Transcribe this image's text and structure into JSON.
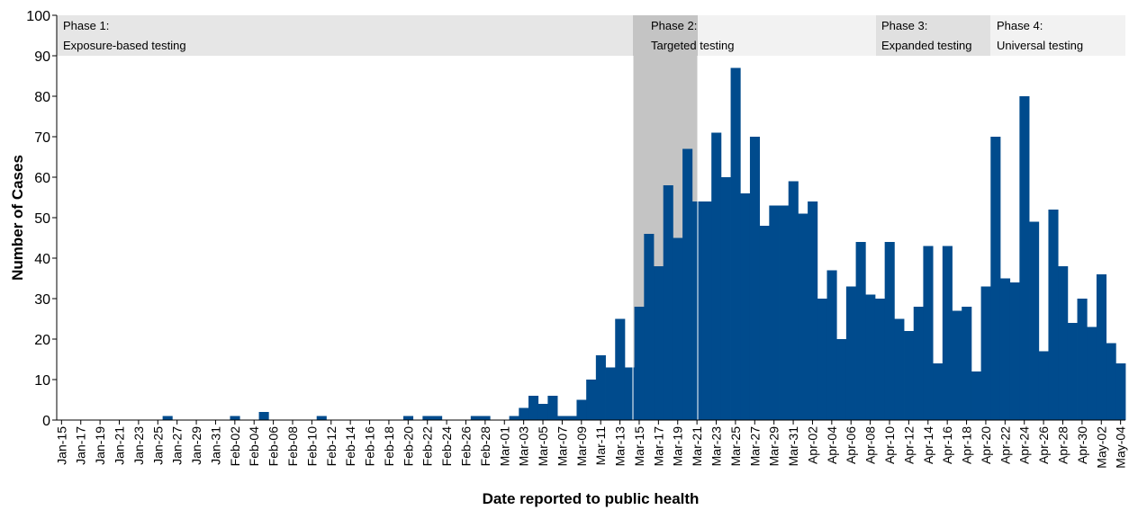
{
  "chart_data": {
    "type": "bar",
    "y_label": "Number of Cases",
    "x_label": "Date reported to public health",
    "color": "#004b8d",
    "phases": [
      {
        "name": "Phase 1:",
        "label": "Exposure-based testing"
      },
      {
        "name": "Phase 2:",
        "label": "Targeted testing"
      },
      {
        "name": "Phase 3:",
        "label": "Expanded testing"
      },
      {
        "name": "Phase 4:",
        "label": "Universal testing"
      }
    ],
    "categories": [
      "Jan-15",
      null,
      "Jan-17",
      null,
      "Jan-19",
      null,
      "Jan-21",
      null,
      "Jan-23",
      null,
      "Jan-25",
      null,
      "Jan-27",
      null,
      "Jan-29",
      null,
      "Jan-31",
      null,
      "Feb-02",
      null,
      "Feb-04",
      null,
      "Feb-06",
      null,
      "Feb-08",
      null,
      "Feb-10",
      null,
      "Feb-12",
      null,
      "Feb-14",
      null,
      "Feb-16",
      null,
      "Feb-18",
      null,
      "Feb-20",
      null,
      "Feb-22",
      null,
      "Feb-24",
      null,
      "Feb-26",
      null,
      "Feb-28",
      null,
      "Mar-01",
      null,
      "Mar-03",
      null,
      "Mar-05",
      null,
      "Mar-07",
      null,
      "Mar-09",
      null,
      "Mar-11",
      null,
      "Mar-13",
      null,
      "Mar-15",
      null,
      "Mar-17",
      null,
      "Mar-19",
      null,
      "Mar-21",
      null,
      "Mar-23",
      null,
      "Mar-25",
      null,
      "Mar-27",
      null,
      "Mar-29",
      null,
      "Mar-31",
      null,
      "Apr-02",
      null,
      "Apr-04",
      null,
      "Apr-06",
      null,
      "Apr-08",
      null,
      "Apr-10",
      null,
      "Apr-12",
      null,
      "Apr-14",
      null,
      "Apr-16",
      null,
      "Apr-18",
      null,
      "Apr-20",
      null,
      "Apr-22",
      null,
      "Apr-24",
      null,
      "Apr-26",
      null,
      "Apr-28",
      null,
      "Apr-30",
      null,
      "May-02",
      null,
      "May-04"
    ],
    "values": [
      0,
      0,
      0,
      0,
      0,
      0,
      0,
      0,
      0,
      0,
      0,
      1,
      0,
      0,
      0,
      0,
      0,
      0,
      1,
      0,
      0,
      2,
      0,
      0,
      0,
      0,
      0,
      1,
      0,
      0,
      0,
      0,
      0,
      0,
      0,
      0,
      1,
      0,
      1,
      1,
      0,
      0,
      0,
      1,
      1,
      0,
      0,
      1,
      3,
      6,
      4,
      6,
      1,
      1,
      5,
      10,
      16,
      13,
      25,
      13,
      28,
      46,
      38,
      58,
      45,
      67,
      54,
      54,
      71,
      60,
      87,
      56,
      70,
      48,
      53,
      53,
      59,
      51,
      54,
      30,
      37,
      20,
      33,
      44,
      31,
      30,
      44,
      25,
      22,
      28,
      43,
      14,
      43,
      27,
      28,
      12,
      33,
      70,
      35,
      34,
      80,
      49,
      17,
      52,
      38,
      24,
      30,
      23,
      36,
      19,
      14
    ],
    "ylim": [
      0,
      100
    ],
    "yticks": [
      0,
      10,
      20,
      30,
      40,
      50,
      60,
      70,
      80,
      90,
      100
    ]
  }
}
